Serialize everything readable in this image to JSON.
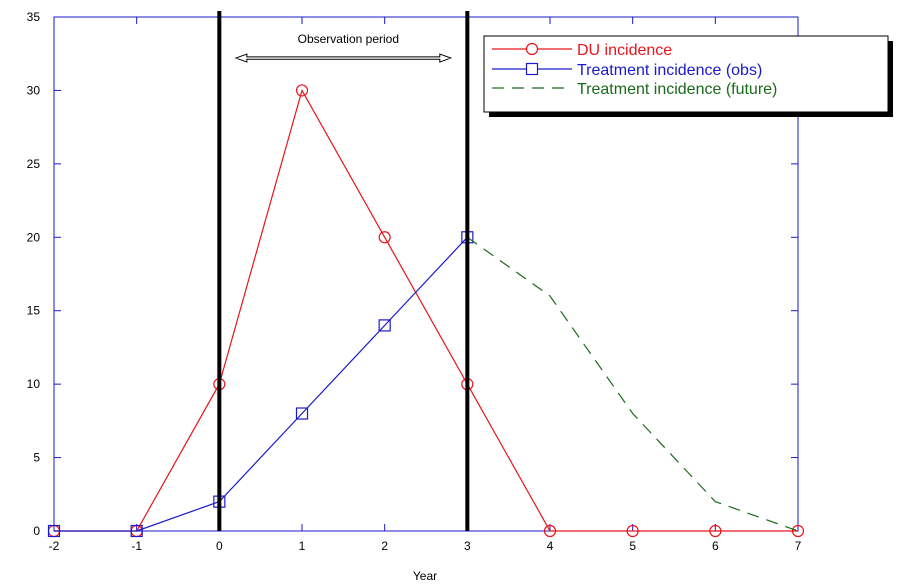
{
  "chart_data": {
    "type": "line",
    "xlabel": "Year",
    "ylabel": "",
    "xlim": [
      -2,
      7
    ],
    "ylim": [
      0,
      35
    ],
    "x_ticks": [
      -2,
      -1,
      0,
      1,
      2,
      3,
      4,
      5,
      6,
      7
    ],
    "y_ticks": [
      0,
      5,
      10,
      15,
      20,
      25,
      30,
      35
    ],
    "grid": false,
    "legend_position": "top-right",
    "series": [
      {
        "name": "DU incidence",
        "color": "#e8141b",
        "marker": "circle",
        "style": "solid",
        "x": [
          -2,
          -1,
          0,
          1,
          2,
          3,
          4,
          5,
          6,
          7
        ],
        "y": [
          0,
          0,
          10,
          30,
          20,
          10,
          0,
          0,
          0,
          0
        ]
      },
      {
        "name": "Treatment incidence (obs)",
        "color": "#1a1acc",
        "marker": "square",
        "style": "solid",
        "x": [
          -2,
          -1,
          0,
          1,
          2,
          3
        ],
        "y": [
          0,
          0,
          2,
          8,
          14,
          20
        ]
      },
      {
        "name": "Treatment incidence (future)",
        "color": "#1a6b1a",
        "marker": "none",
        "style": "dashed",
        "x": [
          3,
          4,
          5,
          6,
          7
        ],
        "y": [
          20,
          16,
          8,
          2,
          0
        ]
      }
    ],
    "vertical_lines": [
      0,
      3
    ],
    "annotation": {
      "text": "Observation period",
      "from_x": 0.2,
      "to_x": 2.8,
      "y": 32
    }
  }
}
